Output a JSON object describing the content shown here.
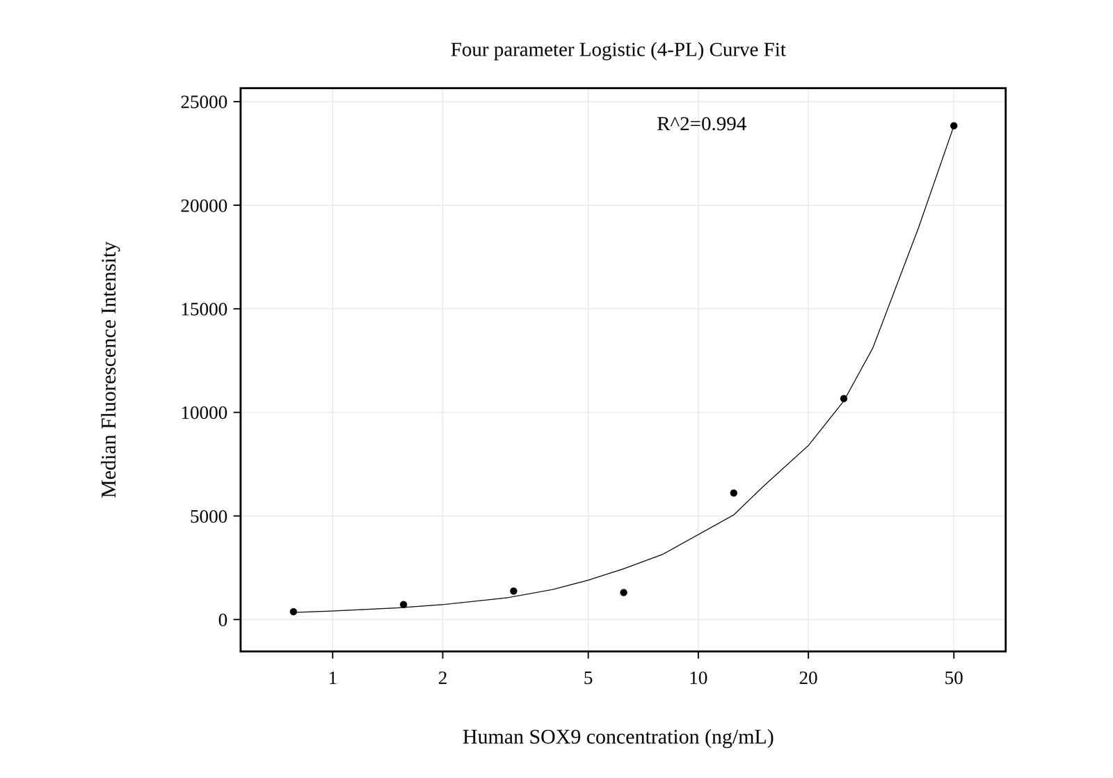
{
  "chart_data": {
    "type": "scatter",
    "title": "Four parameter Logistic (4-PL) Curve Fit",
    "x_label": "Human SOX9 concentration (ng/mL)",
    "y_label": "Median Fluorescence Intensity",
    "annotation": "R^2=0.994",
    "log": "x",
    "grid": true,
    "xlim": [
      0.56,
      69.3
    ],
    "ylim": [
      -1540,
      25650
    ],
    "xticks": [
      1,
      2,
      5,
      10,
      20,
      50
    ],
    "yticks": [
      0,
      5000,
      10000,
      15000,
      20000,
      25000
    ],
    "series": [
      {
        "type": "scatter",
        "marker": "circle",
        "color": "#000000",
        "x": [
          0.78125,
          1.5625,
          3.125,
          6.25,
          12.5,
          25,
          50
        ],
        "values": [
          377,
          720,
          1372,
          1303,
          6104,
          10665,
          23834
        ]
      },
      {
        "type": "line",
        "line_style": "solid",
        "color": "#000000",
        "x": [
          0.78,
          1,
          1.5,
          2,
          3,
          4,
          5,
          6.25,
          8,
          10,
          12.5,
          15,
          20,
          25,
          30,
          40,
          50
        ],
        "values": [
          340,
          410,
          560,
          720,
          1050,
          1450,
          1900,
          2450,
          3150,
          4100,
          5050,
          6400,
          8400,
          10550,
          13100,
          18900,
          23830
        ]
      }
    ]
  }
}
